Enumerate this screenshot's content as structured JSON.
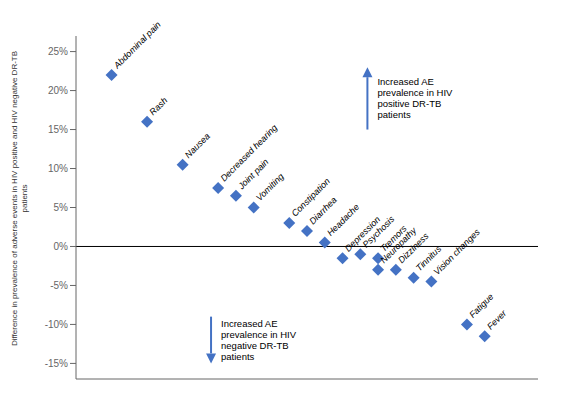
{
  "chart_data": {
    "type": "scatter",
    "ylabel": "Difference in prevalence of adverse events in HIV positive and HIV negative DR-TB\npatients",
    "x": [
      1,
      2,
      3,
      4,
      4.5,
      5,
      6,
      6.5,
      7,
      7.5,
      8,
      8.5,
      8.5,
      9,
      9.5,
      10,
      11,
      11.5
    ],
    "values": [
      22,
      16,
      10.5,
      7.5,
      6.5,
      5,
      3,
      2,
      0.5,
      -1.5,
      -1,
      -1.5,
      -3,
      -3,
      -4,
      -4.5,
      -10,
      -11.5
    ],
    "labels": [
      "Abdominal pain",
      "Rash",
      "Nausea",
      "Decreased hearing",
      "Joint pain",
      "Vomiting",
      "Constipation",
      "Diarrhea",
      "Headache",
      "Depression",
      "Psychosis",
      "Tremors",
      "Neuropathy",
      "Dizziness",
      "Tinnitus",
      "Vision changes",
      "Fatigue",
      "Fever"
    ],
    "color": "#4472C4",
    "marker": "diamond",
    "xlim": [
      0,
      13
    ],
    "ylim": [
      -17,
      27
    ],
    "yticks": [
      {
        "value": -15,
        "label": "-15%"
      },
      {
        "value": -10,
        "label": "-10%"
      },
      {
        "value": -5,
        "label": "-5%"
      },
      {
        "value": 0,
        "label": "0%"
      },
      {
        "value": 5,
        "label": "5%"
      },
      {
        "value": 10,
        "label": "10%"
      },
      {
        "value": 15,
        "label": "15%"
      },
      {
        "value": 20,
        "label": "20%"
      },
      {
        "value": 25,
        "label": "25%"
      }
    ],
    "tick_labels": "y",
    "grid": false,
    "hlines": [
      0
    ],
    "annotations": [
      {
        "text": "Increased AE\nprevalence in HIV\npositive DR-TB\npatients",
        "x": 8.2,
        "y_start": 15,
        "y_end": 23,
        "color": "#4472C4"
      },
      {
        "text": "Increased AE\nprevalence in HIV\nnegative DR-TB\npatients",
        "x": 3.8,
        "y_start": -9,
        "y_end": -15,
        "color": "#4472C4"
      }
    ]
  }
}
